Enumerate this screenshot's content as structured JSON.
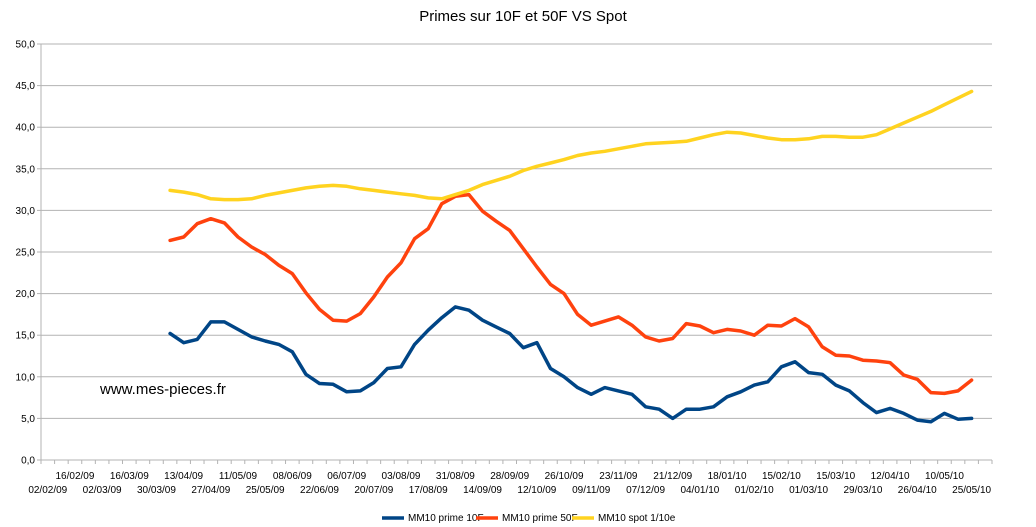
{
  "chart_data": {
    "type": "line",
    "title": "Primes sur 10F et 50F VS Spot",
    "watermark": "www.mes-pieces.fr",
    "ylim": [
      0,
      50
    ],
    "yticks": [
      "0,0",
      "5,0",
      "10,0",
      "15,0",
      "20,0",
      "25,0",
      "30,0",
      "35,0",
      "40,0",
      "45,0",
      "50,0"
    ],
    "x_tick_labels_upper": [
      "16/02/09",
      "16/03/09",
      "13/04/09",
      "11/05/09",
      "08/06/09",
      "06/07/09",
      "03/08/09",
      "31/08/09",
      "28/09/09",
      "26/10/09",
      "23/11/09",
      "21/12/09",
      "18/01/10",
      "15/02/10",
      "15/03/10",
      "12/04/10",
      "10/05/10"
    ],
    "x_tick_labels_lower": [
      "02/02/09",
      "02/03/09",
      "30/03/09",
      "27/04/09",
      "25/05/09",
      "22/06/09",
      "20/07/09",
      "17/08/09",
      "14/09/09",
      "12/10/09",
      "09/11/09",
      "07/12/09",
      "04/01/10",
      "01/02/10",
      "01/03/10",
      "29/03/10",
      "26/04/10",
      "25/05/10"
    ],
    "week_count": 70,
    "series": [
      {
        "name": "MM10 prime 10F",
        "color": "#004586",
        "start_week": 9,
        "values": [
          15.2,
          14.1,
          14.5,
          16.6,
          16.6,
          15.7,
          14.8,
          14.3,
          13.9,
          13.0,
          10.3,
          9.2,
          9.1,
          8.2,
          8.3,
          9.3,
          11.0,
          11.2,
          13.9,
          15.6,
          17.1,
          18.4,
          18.0,
          16.8,
          16.0,
          15.2,
          13.5,
          14.1,
          11.0,
          10.0,
          8.7,
          7.9,
          8.7,
          8.3,
          7.9,
          6.4,
          6.1,
          5.0,
          6.1,
          6.1,
          6.4,
          7.6,
          8.2,
          9.0,
          9.4,
          11.2,
          11.8,
          10.5,
          10.3,
          9.0,
          8.3,
          6.9,
          5.7,
          6.2,
          5.6,
          4.8,
          4.6,
          5.6,
          4.9,
          5.0
        ]
      },
      {
        "name": "MM10 prime 50F",
        "color": "#ff420e",
        "start_week": 9,
        "values": [
          26.4,
          26.8,
          28.4,
          29.0,
          28.5,
          26.8,
          25.6,
          24.7,
          23.4,
          22.4,
          20.1,
          18.1,
          16.8,
          16.7,
          17.6,
          19.6,
          22.0,
          23.7,
          26.6,
          27.8,
          30.8,
          31.7,
          31.9,
          29.9,
          28.7,
          27.6,
          25.4,
          23.2,
          21.1,
          20.0,
          17.5,
          16.2,
          16.7,
          17.2,
          16.2,
          14.8,
          14.3,
          14.6,
          16.4,
          16.1,
          15.3,
          15.7,
          15.5,
          15.0,
          16.2,
          16.1,
          17.0,
          16.0,
          13.6,
          12.6,
          12.5,
          12.0,
          11.9,
          11.7,
          10.2,
          9.7,
          8.1,
          8.0,
          8.3,
          9.6
        ]
      },
      {
        "name": "MM10 spot 1/10e",
        "color": "#ffd320",
        "start_week": 9,
        "values": [
          32.4,
          32.2,
          31.9,
          31.4,
          31.3,
          31.3,
          31.4,
          31.8,
          32.1,
          32.4,
          32.7,
          32.9,
          33.0,
          32.9,
          32.6,
          32.4,
          32.2,
          32.0,
          31.8,
          31.5,
          31.4,
          31.9,
          32.4,
          33.1,
          33.6,
          34.1,
          34.8,
          35.3,
          35.7,
          36.1,
          36.6,
          36.9,
          37.1,
          37.4,
          37.7,
          38.0,
          38.1,
          38.2,
          38.3,
          38.7,
          39.1,
          39.4,
          39.3,
          39.0,
          38.7,
          38.5,
          38.5,
          38.6,
          38.9,
          38.9,
          38.8,
          38.8,
          39.1,
          39.8,
          40.5,
          41.2,
          41.9,
          42.7,
          43.5,
          44.3
        ]
      }
    ],
    "legend_position": "bottom-center",
    "grid": "horizontal"
  }
}
